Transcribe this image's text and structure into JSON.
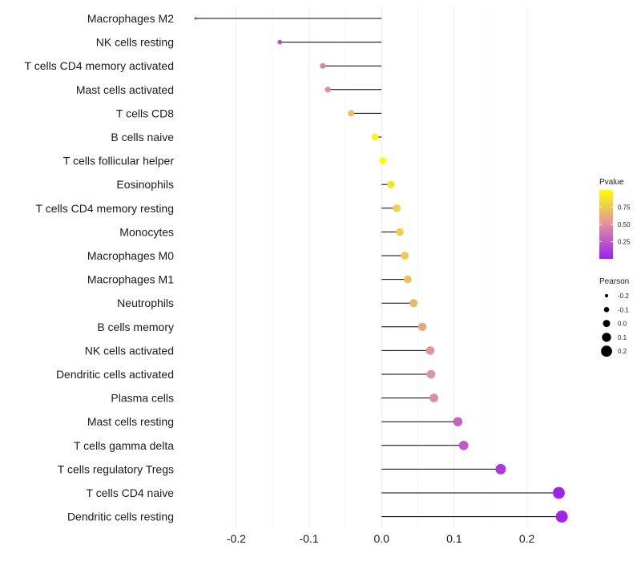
{
  "chart_data": {
    "type": "lollipop",
    "categories": [
      "Macrophages M2",
      "NK cells resting",
      "T cells CD4 memory activated",
      "Mast cells activated",
      "T cells CD8",
      "B cells naive",
      "T cells follicular helper",
      "Eosinophils",
      "T cells CD4 memory resting",
      "Monocytes",
      "Macrophages M0",
      "Macrophages M1",
      "Neutrophils",
      "B cells memory",
      "NK cells activated",
      "Dendritic cells activated",
      "Plasma cells",
      "Mast cells resting",
      "T cells gamma delta",
      "T cells regulatory  Tregs",
      "T cells CD4 naive",
      "Dendritic cells resting"
    ],
    "values": [
      -0.256,
      -0.14,
      -0.081,
      -0.074,
      -0.042,
      -0.009,
      0.002,
      0.013,
      0.021,
      0.025,
      0.032,
      0.036,
      0.044,
      0.056,
      0.067,
      0.068,
      0.072,
      0.105,
      0.113,
      0.164,
      0.244,
      0.248
    ],
    "pvalues": [
      0.02,
      0.2,
      0.45,
      0.48,
      0.7,
      0.95,
      0.98,
      0.88,
      0.8,
      0.78,
      0.76,
      0.73,
      0.68,
      0.6,
      0.52,
      0.5,
      0.48,
      0.3,
      0.25,
      0.1,
      0.005,
      0.004
    ],
    "xlim": [
      -0.255,
      0.26
    ],
    "xticks": [
      -0.2,
      -0.1,
      0.0,
      0.1,
      0.2
    ],
    "xtick_labels": [
      "-0.2",
      "-0.1",
      "0.0",
      "0.1",
      "0.2"
    ],
    "colorbar": {
      "title": "Pvalue",
      "ticks": [
        0.25,
        0.5,
        0.75
      ],
      "tick_labels": [
        "0.25",
        "0.50",
        "0.75"
      ],
      "range": [
        0.0,
        1.0
      ],
      "low_color": "#a020f0",
      "high_color": "#ffff00"
    },
    "size_legend": {
      "title": "Pearson",
      "values": [
        -0.2,
        -0.1,
        0.0,
        0.1,
        0.2
      ],
      "labels": [
        "-0.2",
        "-0.1",
        "0.0",
        "0.1",
        "0.2"
      ]
    },
    "grid": true,
    "legend_position": "right"
  }
}
